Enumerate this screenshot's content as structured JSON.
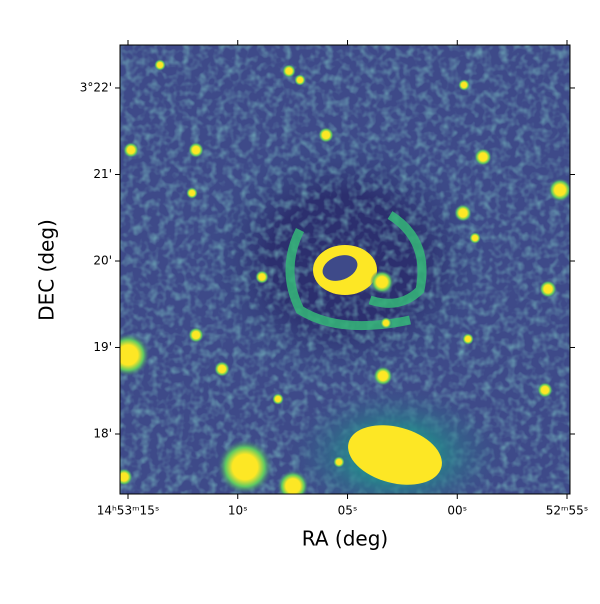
{
  "chart_data": {
    "type": "image",
    "xlabel": "RA (deg)",
    "ylabel": "DEC (deg)",
    "xlim": [
      223.31402,
      223.2286
    ],
    "ylim": [
      3.28844,
      3.37495
    ],
    "xticks": [
      {
        "value": 223.3125,
        "label": "14ʰ53ᵐ15ˢ"
      },
      {
        "value": 223.29167,
        "label": "10ˢ"
      },
      {
        "value": 223.27083,
        "label": "05ˢ"
      },
      {
        "value": 223.25,
        "label": "00ˢ"
      },
      {
        "value": 223.22917,
        "label": "52ᵐ55ˢ"
      }
    ],
    "yticks": [
      {
        "value": 3.3,
        "label": "18'"
      },
      {
        "value": 3.31667,
        "label": "19'"
      },
      {
        "value": 3.33333,
        "label": "20'"
      },
      {
        "value": 3.35,
        "label": "21'"
      },
      {
        "value": 3.36667,
        "label": "3°22'"
      }
    ]
  }
}
